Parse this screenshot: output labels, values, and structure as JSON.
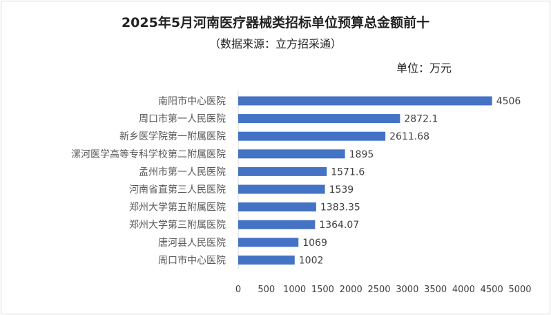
{
  "chart_data": {
    "type": "bar",
    "orientation": "horizontal",
    "title": "2025年5月河南医疗器械类招标单位预算总金额前十",
    "subtitle": "（数据来源：立方招采通）",
    "unit_label": "单位：万元",
    "categories": [
      "南阳市中心医院",
      "周口市第一人民医院",
      "新乡医学院第一附属医院",
      "漯河医学高等专科学校第二附属医院",
      "孟州市第一人民医院",
      "河南省直第三人民医院",
      "郑州大学第五附属医院",
      "郑州大学第三附属医院",
      "唐河县人民医院",
      "周口市中心医院"
    ],
    "values": [
      4506,
      2872.1,
      2611.68,
      1895,
      1571.6,
      1539,
      1383.35,
      1364.07,
      1069,
      1002
    ],
    "value_labels": [
      "4506",
      "2872.1",
      "2611.68",
      "1895",
      "1571.6",
      "1539",
      "1383.35",
      "1364.07",
      "1069",
      "1002"
    ],
    "xlim": [
      0,
      5000
    ],
    "xticks": [
      0,
      500,
      1000,
      1500,
      2000,
      2500,
      3000,
      3500,
      4000,
      4500,
      5000
    ],
    "xtick_labels": [
      "0",
      "500",
      "1000",
      "1500",
      "2000",
      "2500",
      "3000",
      "3500",
      "4000",
      "4500",
      "5000"
    ],
    "bar_color": "#4472C4",
    "grid": false
  }
}
